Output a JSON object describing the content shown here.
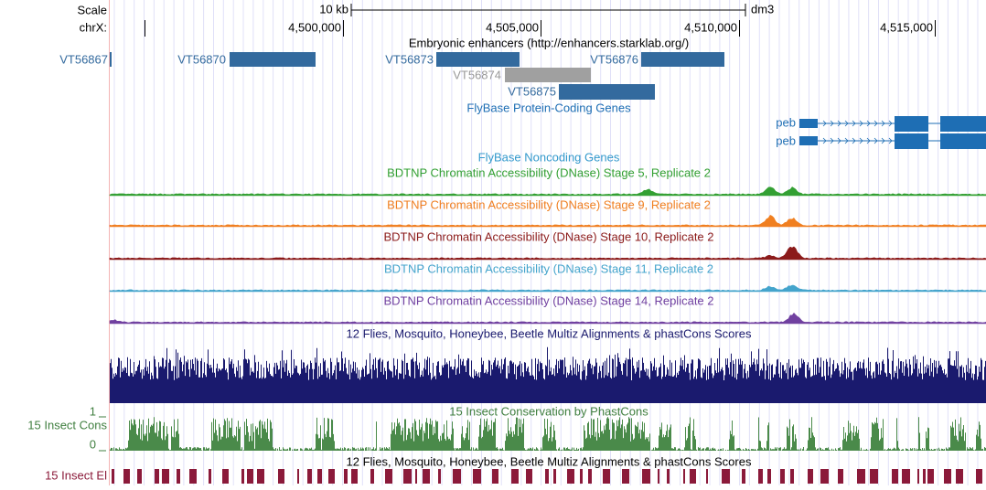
{
  "ruler": {
    "scale_label": "Scale",
    "scale_bar": "10 kb",
    "assembly": "dm3",
    "chrom_label": "chrX:",
    "positions": [
      "4,500,000",
      "4,505,000",
      "4,510,000",
      "4,515,000"
    ]
  },
  "enhancers": {
    "title": "Embryonic enhancers (http://enhancers.starklab.org/)",
    "items": [
      "VT56867",
      "VT56870",
      "VT56873",
      "VT56874",
      "VT56876",
      "VT56875"
    ]
  },
  "protein_genes": {
    "title": "FlyBase Protein-Coding Genes",
    "genes": [
      "peb",
      "peb"
    ]
  },
  "noncoding_genes": {
    "title": "FlyBase Noncoding Genes"
  },
  "dnase_tracks": [
    "BDTNP Chromatin Accessibility (DNase) Stage 5, Replicate 2",
    "BDTNP Chromatin Accessibility (DNase) Stage 9, Replicate 2",
    "BDTNP Chromatin Accessibility (DNase) Stage 10, Replicate 2",
    "BDTNP Chromatin Accessibility (DNase) Stage 11, Replicate 2",
    "BDTNP Chromatin Accessibility (DNase) Stage 14, Replicate 2"
  ],
  "multiz": {
    "title": "12 Flies, Mosquito, Honeybee, Beetle Multiz Alignments & phastCons Scores"
  },
  "conservation": {
    "title": "15 Insect Conservation by PhastCons",
    "side_label": "15 Insect Cons",
    "top": "1",
    "bottom": "0"
  },
  "elements": {
    "title": "12 Flies, Mosquito, Honeybee, Beetle Multiz Alignments & phastCons Scores",
    "side_label": "15 Insect El"
  }
}
